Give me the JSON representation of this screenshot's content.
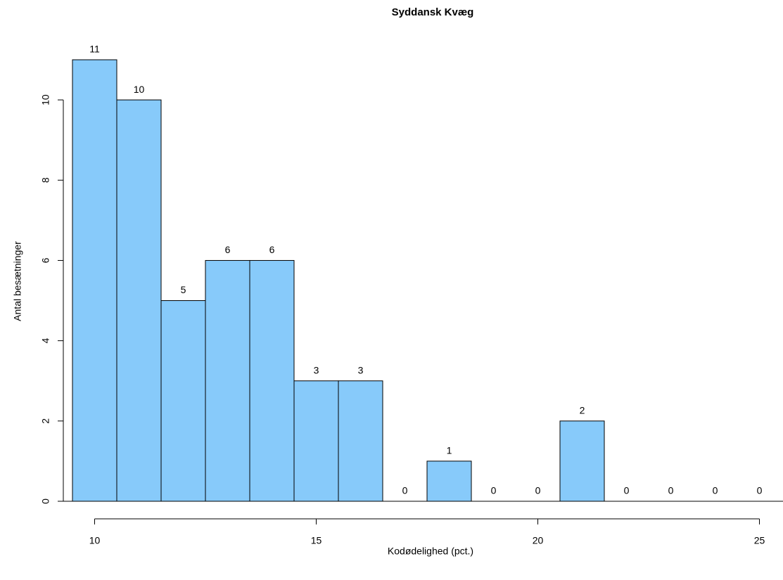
{
  "chart_data": {
    "type": "histogram",
    "title": "Syddansk Kvæg",
    "x_label": "Kodødelighed (pct.)",
    "y_label": "Antal besætninger",
    "bins": [
      9.5,
      10.5,
      11.5,
      12.5,
      13.5,
      14.5,
      15.5,
      16.5,
      17.5,
      18.5,
      19.5,
      20.5,
      21.5,
      22.5,
      23.5,
      24.5,
      25.5
    ],
    "values": [
      11,
      10,
      5,
      6,
      6,
      3,
      3,
      0,
      1,
      0,
      0,
      2,
      0,
      0,
      0,
      0
    ],
    "color": "#87cafa",
    "xlim": [
      9.5,
      25.5
    ],
    "xticks": [
      10,
      15,
      20,
      25
    ],
    "ylim": [
      0,
      11
    ],
    "yticks": [
      0,
      2,
      4,
      6,
      8,
      10
    ]
  }
}
